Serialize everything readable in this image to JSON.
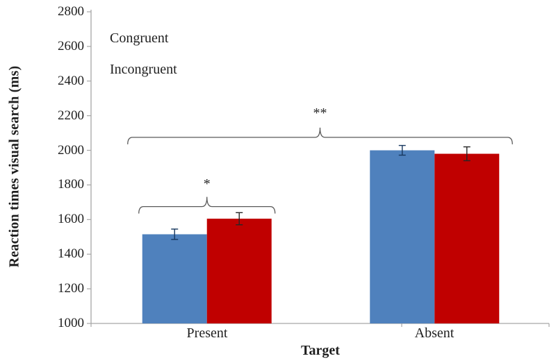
{
  "figure": {
    "background": "#FFFFFF"
  },
  "chart_data": {
    "type": "bar",
    "title": "",
    "xlabel": "Target",
    "ylabel": "Reaction times visual search (ms)",
    "categories": [
      "Present",
      "Absent"
    ],
    "series": [
      {
        "name": "Congruent",
        "color": "#4F81BD",
        "error_color": "#17375E",
        "values": [
          1515,
          2000
        ],
        "errors": [
          30,
          28
        ]
      },
      {
        "name": "Incongruent",
        "color": "#C00000",
        "error_color": "#262626",
        "values": [
          1605,
          1980
        ],
        "errors": [
          35,
          40
        ]
      }
    ],
    "ylim": [
      1000,
      2800
    ],
    "ytick_step": 200,
    "yticks": [
      2800,
      2600,
      2400,
      2200,
      2000,
      1800,
      1600,
      1400,
      1200,
      1000
    ],
    "grid": false,
    "legend_position": "top-left",
    "axis_color": "#A6A6A6",
    "brace_color": "#595959",
    "text_color": "#1F1F1F",
    "annotations": [
      {
        "label": "*",
        "scope": "group",
        "group_index": 0,
        "y": 1675,
        "label_y": 1805
      },
      {
        "label": "**",
        "scope": "all",
        "group_index": 0,
        "y": 2075,
        "label_y": 2215
      }
    ]
  }
}
